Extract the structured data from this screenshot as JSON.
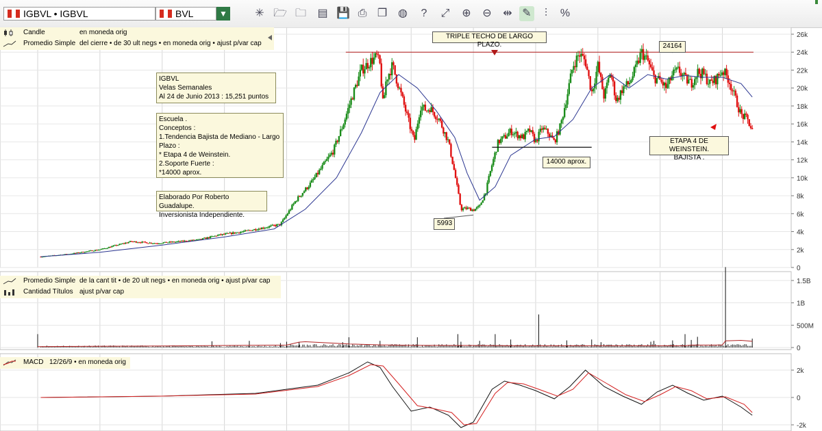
{
  "toolbar": {
    "symbol": "IGBVL • IGBVL",
    "exchange": "BVL",
    "dropdown_glyph": "▼",
    "icons": [
      {
        "name": "new-chart-icon",
        "glyph": "✳"
      },
      {
        "name": "open-folder-icon",
        "glyph": "🗁"
      },
      {
        "name": "export-folder-icon",
        "glyph": "🗀"
      },
      {
        "name": "print-preview-icon",
        "glyph": "▤"
      },
      {
        "name": "save-icon",
        "glyph": "💾"
      },
      {
        "name": "print-icon",
        "glyph": "⎙"
      },
      {
        "name": "copy-icon",
        "glyph": "❐"
      },
      {
        "name": "globe-icon",
        "glyph": "◍"
      },
      {
        "name": "help-icon",
        "glyph": "?"
      },
      {
        "name": "fullscreen-icon",
        "glyph": "⤢"
      },
      {
        "name": "zoom-in-icon",
        "glyph": "⊕"
      },
      {
        "name": "zoom-out-icon",
        "glyph": "⊖"
      },
      {
        "name": "fit-width-icon",
        "glyph": "⇹"
      },
      {
        "name": "draw-tool-icon",
        "glyph": "✎"
      },
      {
        "name": "indicators-icon",
        "glyph": "⫶"
      },
      {
        "name": "percent-icon",
        "glyph": "%"
      }
    ]
  },
  "legends": {
    "price": [
      {
        "icon": "candle",
        "name": "Candle",
        "desc": "en moneda orig"
      },
      {
        "icon": "line",
        "name": "Promedio Simple",
        "desc": "del cierre • de 30 ult negs • en moneda orig • ajust p/var cap"
      }
    ],
    "volume": [
      {
        "icon": "line",
        "name": "Promedio Simple",
        "desc": "de la cant tit • de 20 ult negs • en moneda orig • ajust p/var cap"
      },
      {
        "icon": "bars",
        "name": "Cantidad Títulos",
        "desc": "ajust p/var cap"
      }
    ],
    "macd": [
      {
        "icon": "macd",
        "name": "MACD",
        "desc": "12/26/9 • en moneda orig"
      }
    ]
  },
  "notes": {
    "info": "IGBVL\nVelas Semanales\nAl 24 de Junio 2013 : 15,251 puntos",
    "school": "Escuela .\nConceptos :\n1.Tendencia Bajista de Mediano - Largo Plazo :\n* Etapa 4 de Weinstein.\n2.Soporte Fuerte :\n*14000 aprox.",
    "author": "Elaborado Por Roberto Guadalupe.\nInversionista Independiente."
  },
  "callouts": {
    "triple_top": "TRIPLE TECHO DE LARGO PLAZO.",
    "peak": "24164",
    "low": "5993",
    "support": "14000 aprox.",
    "stage4": "ETAPA 4 DE WEINSTEIN.\nBAJISTA ."
  },
  "colors": {
    "up_candle": "#1a8c1a",
    "down_candle": "#e01010",
    "ma_line": "#2a3590",
    "macd_line": "#111111",
    "signal_line": "#d42020",
    "resistance_line": "#b01818",
    "support_line": "#111111",
    "legend_bg": "#fbf8dd",
    "toolbar_accent": "#2f7a45"
  },
  "chart_data": [
    {
      "type": "candlestick",
      "title": "",
      "ylim": [
        0,
        27000
      ],
      "ytick_values": [
        0,
        2000,
        4000,
        6000,
        8000,
        10000,
        12000,
        14000,
        16000,
        18000,
        20000,
        22000,
        24000,
        26000
      ],
      "ytick_labels": [
        "0",
        "2k",
        "4k",
        "6k",
        "8k",
        "10k",
        "12k",
        "14k",
        "16k",
        "18k",
        "20k",
        "22k",
        "24k",
        "26k"
      ],
      "grid": true,
      "x_range": [
        2002,
        2013.5
      ],
      "close_series": {
        "name": "IGBVL",
        "x": [
          2002.05,
          2002.5,
          2003.0,
          2003.5,
          2003.9,
          2004.3,
          2004.6,
          2004.9,
          2005.3,
          2005.6,
          2005.9,
          2006.15,
          2006.4,
          2006.6,
          2006.75,
          2006.9,
          2007.05,
          2007.2,
          2007.35,
          2007.45,
          2007.5,
          2007.55,
          2007.6,
          2007.7,
          2007.85,
          2007.95,
          2008.05,
          2008.15,
          2008.25,
          2008.3,
          2008.45,
          2008.6,
          2008.7,
          2008.8,
          2008.9,
          2009.0,
          2009.1,
          2009.2,
          2009.3,
          2009.4,
          2009.5,
          2009.6,
          2009.7,
          2009.8,
          2009.9,
          2010.0,
          2010.1,
          2010.2,
          2010.3,
          2010.4,
          2010.5,
          2010.6,
          2010.7,
          2010.8,
          2010.9,
          2011.0,
          2011.1,
          2011.2,
          2011.3,
          2011.4,
          2011.5,
          2011.6,
          2011.7,
          2011.8,
          2011.9,
          2012.0,
          2012.1,
          2012.2,
          2012.3,
          2012.4,
          2012.5,
          2012.6,
          2012.7,
          2012.8,
          2012.9,
          2013.0,
          2013.1,
          2013.2,
          2013.3,
          2013.4,
          2013.48
        ],
        "y": [
          1200,
          1500,
          2000,
          2900,
          2700,
          2900,
          3100,
          3600,
          4000,
          4400,
          4800,
          7500,
          9500,
          11500,
          13000,
          15800,
          19000,
          22000,
          23000,
          23500,
          22500,
          18000,
          21000,
          22500,
          19000,
          16500,
          14000,
          18000,
          17500,
          17800,
          16500,
          14000,
          10500,
          6500,
          6600,
          6400,
          6800,
          8500,
          11500,
          14000,
          14500,
          15200,
          14800,
          14500,
          15300,
          14000,
          15500,
          15000,
          14000,
          15800,
          19000,
          22500,
          23800,
          23000,
          19500,
          22500,
          19000,
          21800,
          18500,
          20000,
          20500,
          22000,
          24000,
          23000,
          21200,
          20800,
          20000,
          21500,
          22000,
          21000,
          20500,
          21800,
          21500,
          20500,
          21000,
          22000,
          21000,
          19000,
          17000,
          16500,
          15251
        ]
      },
      "moving_average": {
        "name": "Promedio Simple",
        "x": [
          2002.05,
          2003.0,
          2004.0,
          2005.0,
          2005.8,
          2006.3,
          2006.8,
          2007.2,
          2007.5,
          2007.8,
          2008.1,
          2008.4,
          2008.7,
          2008.9,
          2009.1,
          2009.35,
          2009.6,
          2010.0,
          2010.3,
          2010.6,
          2010.9,
          2011.2,
          2011.5,
          2011.8,
          2012.1,
          2012.4,
          2012.7,
          2013.0,
          2013.3,
          2013.48
        ],
        "y": [
          1200,
          1700,
          2500,
          3400,
          4300,
          6500,
          10000,
          15000,
          19500,
          21500,
          20000,
          17500,
          14500,
          10500,
          7500,
          9000,
          12500,
          14300,
          14600,
          16500,
          20000,
          21500,
          20000,
          21500,
          21000,
          21400,
          21200,
          21200,
          20500,
          19000
        ]
      },
      "annotations": [
        {
          "text": "TRIPLE TECHO DE LARGO PLAZO.",
          "kind": "resistance",
          "value": 24000
        },
        {
          "text": "24164",
          "kind": "label",
          "x": 2012.15,
          "value": 24164
        },
        {
          "text": "5993",
          "kind": "label",
          "x": 2009.0,
          "value": 5993
        },
        {
          "text": "14000 aprox.",
          "kind": "support",
          "value": 13400
        },
        {
          "text": "ETAPA 4 DE WEINSTEIN.\nBAJISTA .",
          "kind": "label"
        }
      ]
    },
    {
      "type": "bar",
      "name": "Cantidad Títulos",
      "ylim": [
        0,
        1800000000
      ],
      "ytick_values": [
        0,
        500000000,
        1000000000,
        1500000000
      ],
      "ytick_labels": [
        "0",
        "500M",
        "1B",
        "1.5B"
      ],
      "spikes": {
        "x": [
          2002.0,
          2004.8,
          2005.4,
          2005.9,
          2006.0,
          2006.2,
          2006.9,
          2007.0,
          2007.5,
          2008.1,
          2008.75,
          2008.8,
          2009.1,
          2009.35,
          2009.6,
          2010.05,
          2010.5,
          2010.9,
          2011.05,
          2011.85,
          2011.9,
          2012.2,
          2012.4,
          2012.5,
          2012.6,
          2013.05,
          2013.48
        ],
        "y": [
          300000000,
          140000000,
          150000000,
          100000000,
          130000000,
          120000000,
          120000000,
          230000000,
          150000000,
          230000000,
          300000000,
          130000000,
          150000000,
          300000000,
          180000000,
          740000000,
          160000000,
          180000000,
          120000000,
          130000000,
          150000000,
          160000000,
          300000000,
          170000000,
          240000000,
          1800000000,
          200000000
        ]
      },
      "moving_average": {
        "name": "Promedio Simple",
        "x": [
          2002.0,
          2004.0,
          2005.0,
          2006.0,
          2006.2,
          2006.3,
          2006.6,
          2007.0,
          2007.5,
          2008.0,
          2009.0,
          2010.0,
          2011.0,
          2012.0,
          2012.4,
          2012.5,
          2012.9,
          2013.0,
          2013.05,
          2013.3,
          2013.4,
          2013.48
        ],
        "y": [
          20000000,
          35000000,
          45000000,
          55000000,
          120000000,
          130000000,
          110000000,
          80000000,
          60000000,
          50000000,
          45000000,
          40000000,
          40000000,
          40000000,
          40000000,
          55000000,
          55000000,
          60000000,
          150000000,
          160000000,
          150000000,
          140000000
        ]
      }
    },
    {
      "type": "line",
      "name": "MACD",
      "ylim": [
        -2200,
        2600
      ],
      "ytick_values": [
        -2000,
        0,
        2000
      ],
      "ytick_labels": [
        "-2k",
        "0",
        "2k"
      ],
      "series": [
        {
          "name": "MACD",
          "x": [
            2002.05,
            2004.0,
            2005.5,
            2006.5,
            2007.0,
            2007.3,
            2007.5,
            2007.7,
            2008.0,
            2008.3,
            2008.6,
            2008.8,
            2009.0,
            2009.3,
            2009.5,
            2009.75,
            2010.0,
            2010.3,
            2010.55,
            2010.8,
            2011.1,
            2011.4,
            2011.7,
            2011.95,
            2012.2,
            2012.45,
            2012.7,
            2013.0,
            2013.3,
            2013.48
          ],
          "y": [
            0,
            100,
            300,
            900,
            1800,
            2600,
            2200,
            800,
            -1000,
            -700,
            -1300,
            -2200,
            -1800,
            600,
            1200,
            900,
            500,
            -100,
            800,
            2000,
            800,
            100,
            -500,
            400,
            900,
            300,
            -200,
            100,
            -700,
            -1300
          ]
        },
        {
          "name": "Signal",
          "x": [
            2002.05,
            2004.0,
            2005.5,
            2006.5,
            2007.0,
            2007.35,
            2007.55,
            2007.8,
            2008.1,
            2008.35,
            2008.65,
            2008.85,
            2009.05,
            2009.35,
            2009.55,
            2009.8,
            2010.05,
            2010.35,
            2010.6,
            2010.85,
            2011.15,
            2011.45,
            2011.75,
            2012.0,
            2012.25,
            2012.5,
            2012.75,
            2013.05,
            2013.35,
            2013.48
          ],
          "y": [
            0,
            100,
            250,
            800,
            1600,
            2400,
            2300,
            1000,
            -600,
            -800,
            -1100,
            -2000,
            -1900,
            300,
            1100,
            1000,
            600,
            100,
            600,
            1800,
            1000,
            200,
            -300,
            200,
            800,
            500,
            -100,
            50,
            -500,
            -1100
          ]
        }
      ]
    }
  ]
}
